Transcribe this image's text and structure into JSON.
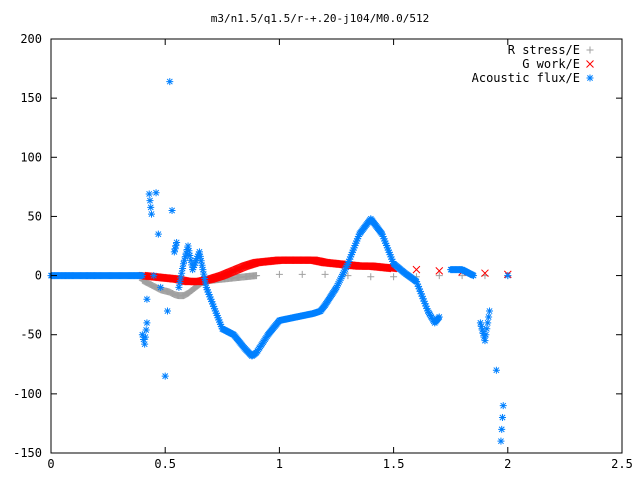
{
  "chart_data": {
    "type": "scatter",
    "title": "m3/n1.5/q1.5/r-+.20-j104/M0.0/512",
    "xlabel": "",
    "ylabel": "",
    "xlim": [
      0,
      2.5
    ],
    "ylim": [
      -150,
      200
    ],
    "x_ticks": [
      0,
      0.5,
      1,
      1.5,
      2,
      2.5
    ],
    "x_tick_labels": [
      "0",
      "0.5",
      "1",
      "1.5",
      "2",
      "2.5"
    ],
    "y_ticks": [
      -150,
      -100,
      -50,
      0,
      50,
      100,
      150,
      200
    ],
    "y_tick_labels": [
      "-150",
      "-100",
      "-50",
      "0",
      "50",
      "100",
      "150",
      "200"
    ],
    "grid": false,
    "legend_position": "top-right",
    "series": [
      {
        "name": "R stress/E",
        "marker": "+",
        "color": "#a0a0a0",
        "points": [
          [
            0.4,
            -4
          ],
          [
            0.42,
            -6
          ],
          [
            0.44,
            -8
          ],
          [
            0.46,
            -10
          ],
          [
            0.48,
            -12
          ],
          [
            0.5,
            -13
          ],
          [
            0.52,
            -14
          ],
          [
            0.54,
            -16
          ],
          [
            0.56,
            -17
          ],
          [
            0.58,
            -17
          ],
          [
            0.6,
            -15
          ],
          [
            0.62,
            -12
          ],
          [
            0.64,
            -9
          ],
          [
            0.66,
            -6
          ],
          [
            0.68,
            -5
          ],
          [
            0.7,
            -4
          ],
          [
            0.75,
            -3
          ],
          [
            0.8,
            -2
          ],
          [
            0.85,
            -1
          ],
          [
            0.9,
            0
          ],
          [
            1.0,
            1
          ],
          [
            1.1,
            1
          ],
          [
            1.2,
            1
          ],
          [
            1.3,
            0
          ],
          [
            1.4,
            -1
          ],
          [
            1.5,
            -1
          ],
          [
            1.6,
            -1
          ],
          [
            1.7,
            0
          ],
          [
            1.8,
            0
          ],
          [
            1.9,
            0
          ],
          [
            2.0,
            0
          ]
        ]
      },
      {
        "name": "G work/E",
        "marker": "x",
        "color": "#ff0000",
        "points": [
          [
            0.4,
            0
          ],
          [
            0.45,
            -1
          ],
          [
            0.5,
            -2
          ],
          [
            0.55,
            -3
          ],
          [
            0.6,
            -5
          ],
          [
            0.65,
            -5
          ],
          [
            0.7,
            -3
          ],
          [
            0.75,
            0
          ],
          [
            0.8,
            4
          ],
          [
            0.85,
            8
          ],
          [
            0.9,
            11
          ],
          [
            0.95,
            12
          ],
          [
            1.0,
            13
          ],
          [
            1.05,
            13
          ],
          [
            1.1,
            13
          ],
          [
            1.15,
            13
          ],
          [
            1.2,
            11
          ],
          [
            1.25,
            10
          ],
          [
            1.3,
            9
          ],
          [
            1.35,
            8
          ],
          [
            1.4,
            8
          ],
          [
            1.45,
            7
          ],
          [
            1.5,
            6
          ],
          [
            1.6,
            5
          ],
          [
            1.7,
            4
          ],
          [
            1.8,
            3
          ],
          [
            1.9,
            2
          ],
          [
            2.0,
            1
          ]
        ]
      },
      {
        "name": "Acoustic flux/E",
        "marker": "*",
        "color": "#0080ff",
        "points": [
          [
            0.0,
            0
          ],
          [
            0.05,
            0
          ],
          [
            0.1,
            0
          ],
          [
            0.15,
            0
          ],
          [
            0.2,
            0
          ],
          [
            0.25,
            0
          ],
          [
            0.3,
            0
          ],
          [
            0.35,
            0
          ],
          [
            0.4,
            0
          ],
          [
            0.4,
            -50
          ],
          [
            0.41,
            -58
          ],
          [
            0.42,
            -40
          ],
          [
            0.42,
            -20
          ],
          [
            0.43,
            69
          ],
          [
            0.44,
            52
          ],
          [
            0.45,
            0
          ],
          [
            0.46,
            70
          ],
          [
            0.47,
            35
          ],
          [
            0.48,
            -10
          ],
          [
            0.5,
            -85
          ],
          [
            0.51,
            -30
          ],
          [
            0.52,
            164
          ],
          [
            0.53,
            55
          ],
          [
            0.54,
            20
          ],
          [
            0.55,
            28
          ],
          [
            0.56,
            -10
          ],
          [
            0.58,
            10
          ],
          [
            0.6,
            25
          ],
          [
            0.62,
            5
          ],
          [
            0.65,
            20
          ],
          [
            0.68,
            -10
          ],
          [
            0.7,
            -20
          ],
          [
            0.72,
            -30
          ],
          [
            0.75,
            -45
          ],
          [
            0.8,
            -50
          ],
          [
            0.85,
            -62
          ],
          [
            0.88,
            -68
          ],
          [
            0.9,
            -65
          ],
          [
            0.95,
            -50
          ],
          [
            1.0,
            -38
          ],
          [
            1.05,
            -36
          ],
          [
            1.1,
            -34
          ],
          [
            1.15,
            -32
          ],
          [
            1.18,
            -30
          ],
          [
            1.2,
            -25
          ],
          [
            1.25,
            -10
          ],
          [
            1.3,
            10
          ],
          [
            1.35,
            35
          ],
          [
            1.4,
            48
          ],
          [
            1.45,
            35
          ],
          [
            1.5,
            10
          ],
          [
            1.55,
            2
          ],
          [
            1.6,
            -5
          ],
          [
            1.65,
            -30
          ],
          [
            1.68,
            -40
          ],
          [
            1.7,
            -35
          ],
          [
            1.75,
            5
          ],
          [
            1.8,
            5
          ],
          [
            1.85,
            0
          ],
          [
            1.88,
            -40
          ],
          [
            1.9,
            -55
          ],
          [
            1.92,
            -30
          ],
          [
            1.95,
            -80
          ],
          [
            1.97,
            -140
          ],
          [
            1.98,
            -110
          ],
          [
            2.0,
            0
          ]
        ]
      }
    ]
  }
}
